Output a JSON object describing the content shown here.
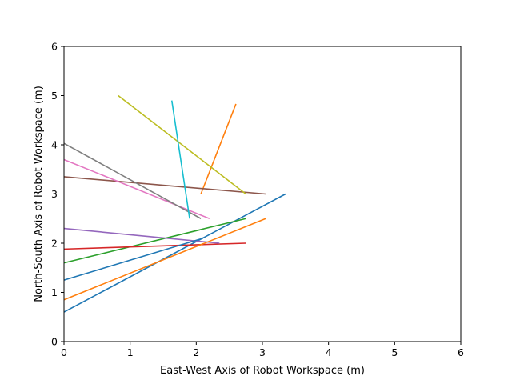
{
  "chart_data": {
    "type": "line",
    "title": "",
    "xlabel": "East-West Axis of Robot Workspace (m)",
    "ylabel": "North-South Axis of Robot Workspace (m)",
    "xlim": [
      0,
      6
    ],
    "ylim": [
      0,
      6
    ],
    "xticks": [
      "0",
      "1",
      "2",
      "3",
      "4",
      "5",
      "6"
    ],
    "yticks": [
      "0",
      "1",
      "2",
      "3",
      "4",
      "5",
      "6"
    ],
    "grid": false,
    "legend": "none",
    "series": [
      {
        "color": "#1f77b4",
        "x": [
          0,
          3.35
        ],
        "y": [
          0.6,
          3.0
        ]
      },
      {
        "color": "#ff7f0e",
        "x": [
          2.07,
          2.6
        ],
        "y": [
          3.0,
          4.83
        ]
      },
      {
        "color": "#2ca02c",
        "x": [
          0,
          2.75
        ],
        "y": [
          1.6,
          2.5
        ]
      },
      {
        "color": "#d62728",
        "x": [
          0,
          2.75
        ],
        "y": [
          1.88,
          2.0
        ]
      },
      {
        "color": "#9467bd",
        "x": [
          0,
          2.35
        ],
        "y": [
          2.3,
          2.0
        ]
      },
      {
        "color": "#8c564b",
        "x": [
          0,
          3.05
        ],
        "y": [
          3.35,
          3.0
        ]
      },
      {
        "color": "#e377c2",
        "x": [
          0,
          2.2
        ],
        "y": [
          3.7,
          2.5
        ]
      },
      {
        "color": "#7f7f7f",
        "x": [
          0,
          2.07
        ],
        "y": [
          4.03,
          2.5
        ]
      },
      {
        "color": "#bcbd22",
        "x": [
          0.82,
          2.75
        ],
        "y": [
          5.0,
          3.0
        ]
      },
      {
        "color": "#17becf",
        "x": [
          1.63,
          1.9
        ],
        "y": [
          4.9,
          2.5
        ]
      },
      {
        "color": "#1f77b4",
        "x": [
          0,
          2.1
        ],
        "y": [
          1.25,
          2.1
        ]
      },
      {
        "color": "#ff7f0e",
        "x": [
          0,
          3.05
        ],
        "y": [
          0.85,
          2.5
        ]
      }
    ]
  }
}
